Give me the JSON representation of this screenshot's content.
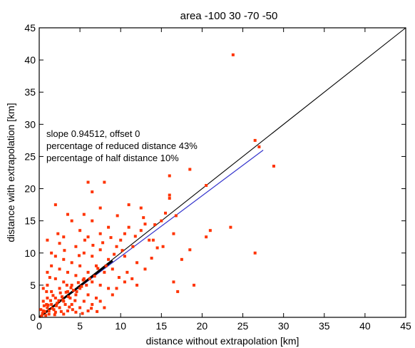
{
  "chart_data": {
    "type": "scatter",
    "title": "area -100  30 -70 -50",
    "xlabel": "distance without extrapolation [km]",
    "ylabel": "distance with extrapolation [km]",
    "xlim": [
      0,
      45
    ],
    "ylim": [
      0,
      45
    ],
    "xticks": [
      "0",
      "5",
      "10",
      "15",
      "20",
      "25",
      "30",
      "35",
      "40",
      "45"
    ],
    "yticks": [
      "0",
      "5",
      "10",
      "15",
      "20",
      "25",
      "30",
      "35",
      "40",
      "45"
    ],
    "grid": false,
    "annotations": [
      "slope 0.94512, offset 0",
      "percentage of reduced distance 43%",
      "percentage of half distance 10%"
    ],
    "reference_lines": [
      {
        "slope": 1.0,
        "offset": 0,
        "color": "#000000"
      },
      {
        "slope": 0.94512,
        "offset": 0,
        "color": "#3333cc"
      }
    ],
    "marker_color": "#ff3300",
    "points": [
      [
        23.8,
        40.8
      ],
      [
        26.5,
        27.5
      ],
      [
        28.8,
        23.5
      ],
      [
        26.5,
        10.0
      ],
      [
        23.5,
        14.0
      ],
      [
        27.0,
        26.5
      ],
      [
        20.5,
        20.5
      ],
      [
        21.0,
        13.5
      ],
      [
        20.5,
        12.5
      ],
      [
        18.5,
        23.0
      ],
      [
        16.0,
        18.5
      ],
      [
        16.5,
        13.0
      ],
      [
        14.5,
        10.8
      ],
      [
        18.5,
        10.5
      ],
      [
        17.5,
        9.0
      ],
      [
        19.0,
        5.0
      ],
      [
        16.5,
        5.5
      ],
      [
        17.0,
        4.0
      ],
      [
        14.0,
        12.0
      ],
      [
        15.0,
        15.0
      ],
      [
        16.0,
        22.0
      ],
      [
        16.0,
        19.0
      ],
      [
        11.0,
        17.5
      ],
      [
        12.5,
        17.0
      ],
      [
        13.0,
        14.5
      ],
      [
        12.5,
        13.5
      ],
      [
        11.0,
        14.0
      ],
      [
        10.5,
        13.0
      ],
      [
        11.5,
        11.0
      ],
      [
        10.0,
        12.0
      ],
      [
        9.5,
        11.0
      ],
      [
        10.5,
        9.5
      ],
      [
        12.0,
        8.5
      ],
      [
        13.0,
        7.5
      ],
      [
        12.0,
        5.0
      ],
      [
        10.5,
        5.5
      ],
      [
        9.5,
        4.5
      ],
      [
        8.0,
        21.0
      ],
      [
        6.0,
        21.0
      ],
      [
        6.5,
        19.5
      ],
      [
        7.5,
        17.0
      ],
      [
        5.5,
        16.0
      ],
      [
        6.5,
        15.0
      ],
      [
        8.5,
        14.0
      ],
      [
        7.5,
        13.0
      ],
      [
        6.0,
        12.5
      ],
      [
        5.0,
        13.5
      ],
      [
        4.0,
        15.0
      ],
      [
        3.5,
        16.0
      ],
      [
        2.0,
        17.5
      ],
      [
        1.0,
        12.0
      ],
      [
        1.5,
        10.0
      ],
      [
        2.5,
        11.5
      ],
      [
        3.0,
        12.5
      ],
      [
        4.5,
        11.0
      ],
      [
        5.5,
        10.0
      ],
      [
        6.5,
        9.5
      ],
      [
        7.5,
        10.5
      ],
      [
        8.5,
        9.0
      ],
      [
        9.0,
        7.5
      ],
      [
        8.0,
        7.0
      ],
      [
        7.0,
        8.0
      ],
      [
        6.0,
        7.0
      ],
      [
        5.0,
        8.0
      ],
      [
        4.0,
        8.5
      ],
      [
        3.0,
        9.0
      ],
      [
        2.0,
        9.5
      ],
      [
        1.5,
        8.0
      ],
      [
        1.0,
        7.0
      ],
      [
        2.5,
        7.5
      ],
      [
        3.5,
        7.0
      ],
      [
        4.5,
        6.5
      ],
      [
        5.5,
        6.0
      ],
      [
        6.5,
        5.5
      ],
      [
        7.5,
        5.0
      ],
      [
        8.5,
        4.5
      ],
      [
        9.0,
        3.5
      ],
      [
        7.0,
        3.0
      ],
      [
        6.0,
        3.5
      ],
      [
        5.0,
        4.5
      ],
      [
        4.0,
        5.0
      ],
      [
        3.0,
        5.5
      ],
      [
        2.0,
        6.0
      ],
      [
        1.0,
        5.0
      ],
      [
        0.5,
        4.5
      ],
      [
        1.5,
        4.0
      ],
      [
        2.5,
        4.5
      ],
      [
        3.5,
        4.0
      ],
      [
        4.5,
        3.5
      ],
      [
        5.5,
        2.5
      ],
      [
        6.5,
        2.0
      ],
      [
        7.5,
        2.5
      ],
      [
        8.0,
        1.5
      ],
      [
        6.0,
        1.0
      ],
      [
        5.0,
        1.5
      ],
      [
        4.0,
        2.0
      ],
      [
        3.0,
        2.5
      ],
      [
        2.0,
        3.0
      ],
      [
        1.0,
        3.0
      ],
      [
        0.5,
        2.5
      ],
      [
        1.5,
        2.0
      ],
      [
        2.5,
        1.5
      ],
      [
        3.5,
        1.0
      ],
      [
        4.5,
        0.8
      ],
      [
        3.0,
        0.5
      ],
      [
        2.0,
        0.8
      ],
      [
        1.0,
        1.5
      ],
      [
        0.5,
        1.0
      ],
      [
        1.2,
        0.5
      ],
      [
        0.8,
        0.3
      ],
      [
        2.2,
        2.2
      ],
      [
        1.8,
        1.2
      ],
      [
        2.8,
        3.2
      ],
      [
        3.2,
        2.0
      ],
      [
        3.8,
        3.0
      ],
      [
        4.2,
        4.2
      ],
      [
        1.4,
        2.6
      ],
      [
        0.6,
        1.8
      ],
      [
        2.6,
        3.8
      ],
      [
        3.4,
        5.0
      ],
      [
        4.8,
        5.4
      ],
      [
        5.2,
        4.8
      ],
      [
        6.2,
        6.0
      ],
      [
        5.8,
        5.0
      ],
      [
        4.4,
        2.6
      ],
      [
        1.2,
        1.0
      ],
      [
        0.9,
        2.0
      ],
      [
        1.7,
        3.4
      ],
      [
        2.4,
        2.6
      ],
      [
        3.6,
        3.2
      ],
      [
        0.4,
        0.6
      ],
      [
        0.7,
        0.9
      ],
      [
        1.1,
        1.9
      ],
      [
        1.6,
        1.4
      ],
      [
        2.1,
        1.8
      ],
      [
        2.9,
        2.7
      ],
      [
        3.3,
        3.9
      ],
      [
        3.9,
        4.6
      ],
      [
        4.6,
        4.0
      ],
      [
        5.4,
        5.8
      ],
      [
        6.8,
        6.4
      ],
      [
        7.2,
        7.6
      ],
      [
        8.2,
        8.0
      ],
      [
        9.2,
        9.8
      ],
      [
        10.2,
        10.4
      ],
      [
        11.8,
        12.6
      ],
      [
        13.5,
        12.0
      ],
      [
        14.2,
        14.4
      ],
      [
        15.5,
        16.2
      ],
      [
        12.8,
        15.5
      ],
      [
        2.3,
        13.0
      ],
      [
        1.3,
        6.2
      ],
      [
        0.9,
        4.0
      ],
      [
        3.1,
        10.4
      ],
      [
        4.9,
        9.6
      ],
      [
        6.6,
        11.2
      ],
      [
        8.8,
        12.4
      ],
      [
        9.6,
        15.8
      ],
      [
        7.8,
        11.6
      ],
      [
        5.6,
        12.0
      ],
      [
        0.3,
        0.2
      ],
      [
        0.2,
        1.2
      ],
      [
        1.9,
        0.4
      ],
      [
        2.7,
        0.9
      ],
      [
        3.7,
        1.6
      ],
      [
        4.1,
        1.2
      ],
      [
        5.3,
        0.6
      ],
      [
        6.4,
        1.4
      ],
      [
        7.1,
        0.9
      ],
      [
        9.8,
        6.2
      ],
      [
        10.8,
        7.0
      ],
      [
        11.4,
        6.0
      ],
      [
        13.8,
        9.2
      ],
      [
        15.2,
        11.0
      ],
      [
        16.8,
        15.8
      ]
    ]
  }
}
